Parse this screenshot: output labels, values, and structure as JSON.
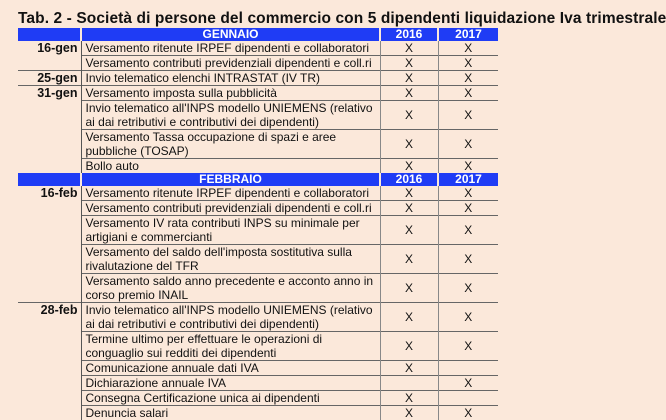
{
  "title": "Tab. 2 - Società di persone del commercio con 5 dipendenti liquidazione Iva trimestrale",
  "colors": {
    "header_bg": "#1f3cf5",
    "page_bg": "#fbe8da"
  },
  "sections": [
    {
      "month": "GENNAIO",
      "year1": "2016",
      "year2": "2017",
      "rows": [
        {
          "date": "16-gen",
          "text": "Versamento ritenute IRPEF dipendenti e collaboratori",
          "y2016": "X",
          "y2017": "X"
        },
        {
          "date": "",
          "text": "Versamento contributi previdenziali dipendenti e coll.ri",
          "y2016": "X",
          "y2017": "X"
        },
        {
          "date": "25-gen",
          "text": "Invio telematico elenchi INTRASTAT (IV TR)",
          "y2016": "X",
          "y2017": "X"
        },
        {
          "date": "31-gen",
          "text": "Versamento imposta sulla pubblicità",
          "y2016": "X",
          "y2017": "X"
        },
        {
          "date": "",
          "text": "Invio telematico all'INPS modello UNIEMENS (relativo ai dai retributivi e contributivi dei dipendenti)",
          "y2016": "X",
          "y2017": "X"
        },
        {
          "date": "",
          "text": "Versamento Tassa occupazione di spazi e aree pubbliche (TOSAP)",
          "y2016": "X",
          "y2017": "X"
        },
        {
          "date": "",
          "text": "Bollo auto",
          "y2016": "X",
          "y2017": "X"
        }
      ]
    },
    {
      "month": "FEBBRAIO",
      "year1": "2016",
      "year2": "2017",
      "rows": [
        {
          "date": "16-feb",
          "text": "Versamento ritenute IRPEF dipendenti e collaboratori",
          "y2016": "X",
          "y2017": "X"
        },
        {
          "date": "",
          "text": "Versamento contributi previdenziali dipendenti e coll.ri",
          "y2016": "X",
          "y2017": "X"
        },
        {
          "date": "",
          "text": "Versamento IV rata contributi INPS su minimale per artigiani e commercianti",
          "y2016": "X",
          "y2017": "X"
        },
        {
          "date": "",
          "text": "Versamento del saldo dell'imposta sostitutiva sulla rivalutazione del TFR",
          "y2016": "X",
          "y2017": "X"
        },
        {
          "date": "",
          "text": "Versamento saldo anno precedente e acconto anno in corso premio INAIL",
          "y2016": "X",
          "y2017": "X"
        },
        {
          "date": "28-feb",
          "text": "Invio telematico all'INPS modello UNIEMENS (relativo ai dai retributivi e contributivi dei dipendenti)",
          "y2016": "X",
          "y2017": "X"
        },
        {
          "date": "",
          "text": "Termine ultimo per effettuare le operazioni di conguaglio sui redditi dei dipendenti",
          "y2016": "X",
          "y2017": "X"
        },
        {
          "date": "",
          "text": "Comunicazione annuale dati IVA",
          "y2016": "X",
          "y2017": ""
        },
        {
          "date": "",
          "text": "Dichiarazione annuale IVA",
          "y2016": "",
          "y2017": "X"
        },
        {
          "date": "",
          "text": "Consegna Certificazione unica ai dipendenti",
          "y2016": "X",
          "y2017": ""
        },
        {
          "date": "",
          "text": "Denuncia salari",
          "y2016": "X",
          "y2017": "X"
        }
      ]
    }
  ]
}
